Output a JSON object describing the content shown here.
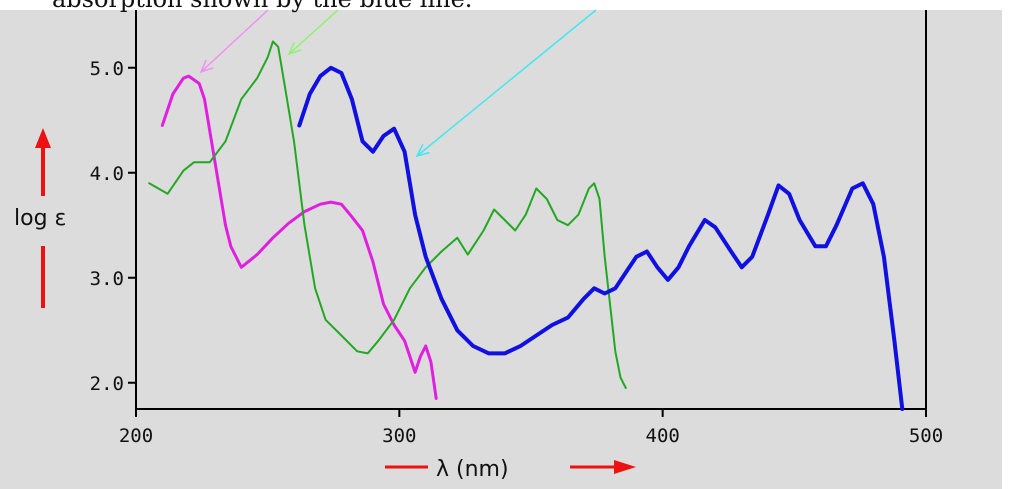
{
  "caption": "absorption shown by the blue line.",
  "colors": {
    "panel_bg": "#dcdcdc",
    "page_bg": "#ffffff",
    "axis": "#000000",
    "magenta": "#e020e0",
    "green": "#22a822",
    "blue": "#1010e0",
    "red_arrow": "#ee1111",
    "pointer_magenta": "#f090f0",
    "pointer_green": "#90f070",
    "pointer_cyan": "#40e8f0"
  },
  "chart_data": {
    "type": "line",
    "title": "",
    "xlabel": "λ (nm)",
    "ylabel": "log ε",
    "xlim": [
      200,
      500
    ],
    "ylim": [
      1.75,
      5.55
    ],
    "xticks": [
      200,
      300,
      400,
      500
    ],
    "xtick_labels": [
      "200",
      "300",
      "400",
      "500"
    ],
    "yticks": [
      2.0,
      3.0,
      4.0,
      5.0
    ],
    "ytick_labels": [
      "2.0",
      "3.0",
      "4.0",
      "5.0"
    ],
    "grid": false,
    "legend": "none",
    "series": [
      {
        "color": "magenta",
        "x": [
          210,
          214,
          218,
          220,
          224,
          226,
          230,
          234,
          236,
          240,
          246,
          252,
          258,
          264,
          270,
          274,
          278,
          282,
          286,
          290,
          294,
          298,
          302,
          304,
          306,
          308,
          310,
          312,
          314
        ],
        "y": [
          4.45,
          4.75,
          4.9,
          4.92,
          4.85,
          4.7,
          4.1,
          3.5,
          3.3,
          3.1,
          3.22,
          3.38,
          3.52,
          3.63,
          3.7,
          3.72,
          3.7,
          3.58,
          3.45,
          3.15,
          2.75,
          2.55,
          2.4,
          2.25,
          2.1,
          2.25,
          2.35,
          2.2,
          1.85
        ]
      },
      {
        "color": "green",
        "x": [
          205,
          212,
          218,
          222,
          228,
          234,
          240,
          246,
          250,
          252,
          254,
          256,
          260,
          264,
          268,
          272,
          278,
          284,
          288,
          292,
          298,
          304,
          310,
          316,
          322,
          326,
          332,
          336,
          340,
          344,
          348,
          352,
          356,
          360,
          364,
          368,
          372,
          374,
          376,
          378,
          380,
          382,
          384,
          386
        ],
        "y": [
          3.9,
          3.8,
          4.02,
          4.1,
          4.1,
          4.3,
          4.7,
          4.9,
          5.1,
          5.25,
          5.2,
          4.9,
          4.3,
          3.5,
          2.9,
          2.6,
          2.45,
          2.3,
          2.28,
          2.4,
          2.6,
          2.9,
          3.1,
          3.25,
          3.38,
          3.22,
          3.45,
          3.65,
          3.55,
          3.45,
          3.6,
          3.85,
          3.75,
          3.55,
          3.5,
          3.6,
          3.85,
          3.9,
          3.75,
          3.2,
          2.75,
          2.3,
          2.05,
          1.95
        ]
      },
      {
        "color": "blue",
        "x": [
          262,
          266,
          270,
          274,
          278,
          282,
          286,
          290,
          294,
          298,
          302,
          306,
          310,
          316,
          322,
          328,
          334,
          340,
          346,
          352,
          358,
          364,
          370,
          374,
          378,
          382,
          386,
          390,
          394,
          398,
          402,
          406,
          410,
          416,
          420,
          426,
          430,
          434,
          440,
          444,
          448,
          452,
          458,
          462,
          466,
          472,
          476,
          480,
          484,
          488,
          491
        ],
        "y": [
          4.45,
          4.75,
          4.92,
          5.0,
          4.95,
          4.7,
          4.3,
          4.2,
          4.35,
          4.42,
          4.2,
          3.6,
          3.2,
          2.8,
          2.5,
          2.35,
          2.28,
          2.28,
          2.35,
          2.45,
          2.55,
          2.62,
          2.8,
          2.9,
          2.85,
          2.9,
          3.05,
          3.2,
          3.25,
          3.1,
          2.98,
          3.1,
          3.3,
          3.55,
          3.48,
          3.25,
          3.1,
          3.2,
          3.6,
          3.88,
          3.8,
          3.55,
          3.3,
          3.3,
          3.5,
          3.85,
          3.9,
          3.7,
          3.2,
          2.4,
          1.75
        ]
      }
    ]
  }
}
